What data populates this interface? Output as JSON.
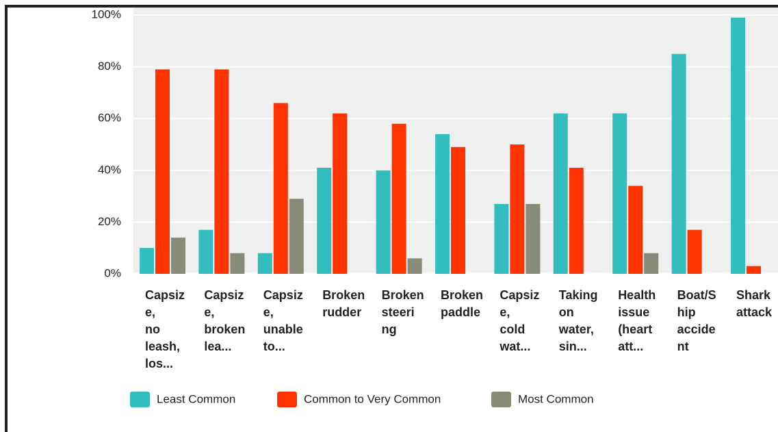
{
  "chart_data": {
    "type": "bar",
    "categories": [
      "Capsiz\ne,\nno\nleash,\nlos...",
      "Capsiz\ne,\nbroken\nlea...",
      "Capsiz\ne,\nunable\nto...",
      "Broken\nrudder",
      "Broken\nsteeri\nng",
      "Broken\npaddle",
      "Capsiz\ne,\ncold\nwat...",
      "Taking\non\nwater,\nsin...",
      "Health\nissue\n(heart\natt...",
      "Boat/S\nhip\naccide\nnt",
      "Shark\nattack"
    ],
    "series": [
      {
        "name": "Least Common",
        "color": "#33bdbd",
        "values": [
          10,
          17,
          8,
          41,
          40,
          54,
          27,
          62,
          62,
          85,
          99
        ]
      },
      {
        "name": "Common to Very Common",
        "color": "#ff3300",
        "values": [
          79,
          79,
          66,
          62,
          58,
          49,
          50,
          41,
          34,
          17,
          3
        ]
      },
      {
        "name": "Most Common",
        "color": "#8a8a78",
        "values": [
          14,
          8,
          29,
          0,
          6,
          0,
          27,
          0,
          8,
          0,
          0
        ]
      }
    ],
    "ylim": [
      0,
      100
    ],
    "yticks": [
      {
        "value": 0,
        "label": "0%"
      },
      {
        "value": 20,
        "label": "20%"
      },
      {
        "value": 40,
        "label": "40%"
      },
      {
        "value": 60,
        "label": "60%"
      },
      {
        "value": 80,
        "label": "80%"
      },
      {
        "value": 100,
        "label": "100%"
      }
    ],
    "grid": true,
    "legend": "bottom"
  }
}
